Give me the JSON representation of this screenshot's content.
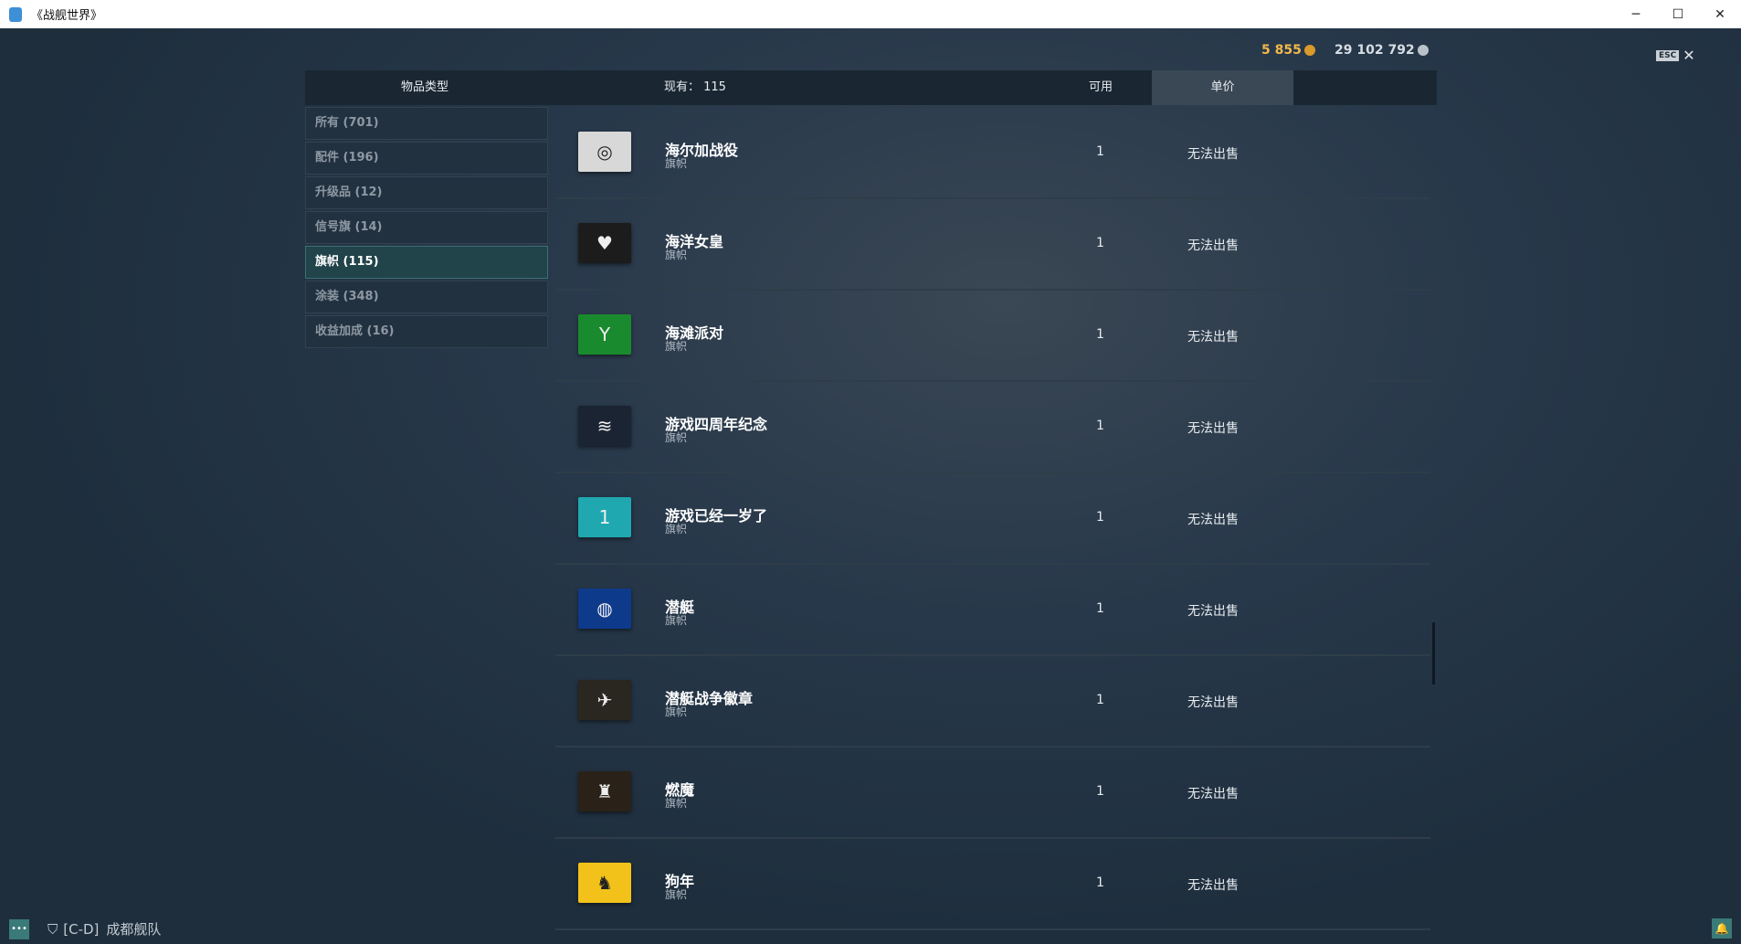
{
  "window": {
    "title": "《战舰世界》"
  },
  "currency": {
    "gold": "5 855",
    "credits": "29 102 792",
    "gold_color": "#f2b84a",
    "credits_color": "#d6dde3"
  },
  "esc": {
    "key": "ESC",
    "close": "✕"
  },
  "header": {
    "category_col": "物品类型",
    "owned": "现有：  115",
    "available_col": "可用",
    "price_tab": "单价"
  },
  "sidebar": {
    "items": [
      {
        "label": "所有 (701)"
      },
      {
        "label": "配件 (196)"
      },
      {
        "label": "升级品 (12)"
      },
      {
        "label": "信号旗 (14)"
      },
      {
        "label": "旗帜 (115)",
        "active": true
      },
      {
        "label": "涂装 (348)"
      },
      {
        "label": "收益加成 (16)"
      }
    ]
  },
  "items": [
    {
      "name": "海尔加战役",
      "type": "旗帜",
      "qty": "1",
      "price": "无法出售",
      "flag_bg": "#d8d8d8",
      "glyph": "◎"
    },
    {
      "name": "海洋女皇",
      "type": "旗帜",
      "qty": "1",
      "price": "无法出售",
      "flag_bg": "#1c1c1c",
      "glyph": "♥"
    },
    {
      "name": "海滩派对",
      "type": "旗帜",
      "qty": "1",
      "price": "无法出售",
      "flag_bg": "#1a8a2e",
      "glyph": "Y"
    },
    {
      "name": "游戏四周年纪念",
      "type": "旗帜",
      "qty": "1",
      "price": "无法出售",
      "flag_bg": "#1b2433",
      "glyph": "≋"
    },
    {
      "name": "游戏已经一岁了",
      "type": "旗帜",
      "qty": "1",
      "price": "无法出售",
      "flag_bg": "#1fa8b0",
      "glyph": "1"
    },
    {
      "name": "潜艇",
      "type": "旗帜",
      "qty": "1",
      "price": "无法出售",
      "flag_bg": "#0e3a8c",
      "glyph": "◍"
    },
    {
      "name": "潜艇战争徽章",
      "type": "旗帜",
      "qty": "1",
      "price": "无法出售",
      "flag_bg": "#2a2620",
      "glyph": "✈"
    },
    {
      "name": "燃魔",
      "type": "旗帜",
      "qty": "1",
      "price": "无法出售",
      "flag_bg": "#2a2218",
      "glyph": "♜"
    },
    {
      "name": "狗年",
      "type": "旗帜",
      "qty": "1",
      "price": "无法出售",
      "flag_bg": "#f2c21a",
      "glyph": "♞"
    }
  ],
  "bottom": {
    "clan_tag": "[C-D]",
    "clan_name": "成都舰队"
  }
}
